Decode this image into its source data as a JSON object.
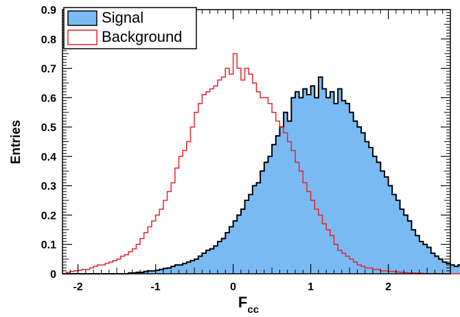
{
  "chart_data": {
    "type": "histogram",
    "xlabel": "F",
    "xlabel_sub": "cc",
    "ylabel": "Entries",
    "xlim": [
      -2.2,
      2.8
    ],
    "ylim": [
      0,
      0.9
    ],
    "x_ticks": [
      "-2",
      "-1",
      "0",
      "1",
      "2"
    ],
    "x_tick_values": [
      -2,
      -1,
      0,
      1,
      2
    ],
    "y_ticks": [
      "0",
      "0.1",
      "0.2",
      "0.3",
      "0.4",
      "0.5",
      "0.6",
      "0.7",
      "0.8",
      "0.9"
    ],
    "y_tick_values": [
      0,
      0.1,
      0.2,
      0.3,
      0.4,
      0.5,
      0.6,
      0.7,
      0.8,
      0.9
    ],
    "bin_start": -2.2,
    "bin_width": 0.05,
    "legend": {
      "position": "top-left"
    },
    "series": [
      {
        "name": "Signal",
        "style": "filled",
        "fill_color": "#79BAF3",
        "line_color": "#000000",
        "values": [
          0,
          0,
          0,
          0,
          0,
          0,
          0,
          0,
          0,
          0,
          0,
          0,
          0,
          0,
          0,
          0,
          0,
          0.003,
          0.003,
          0.005,
          0.005,
          0.008,
          0.01,
          0.01,
          0.012,
          0.015,
          0.018,
          0.02,
          0.025,
          0.03,
          0.03,
          0.035,
          0.04,
          0.045,
          0.05,
          0.06,
          0.07,
          0.08,
          0.085,
          0.095,
          0.11,
          0.12,
          0.14,
          0.16,
          0.18,
          0.2,
          0.22,
          0.25,
          0.27,
          0.3,
          0.31,
          0.35,
          0.38,
          0.4,
          0.44,
          0.47,
          0.5,
          0.55,
          0.52,
          0.6,
          0.62,
          0.6,
          0.63,
          0.61,
          0.64,
          0.6,
          0.67,
          0.63,
          0.6,
          0.62,
          0.58,
          0.63,
          0.59,
          0.58,
          0.55,
          0.52,
          0.5,
          0.48,
          0.45,
          0.43,
          0.4,
          0.38,
          0.35,
          0.33,
          0.3,
          0.27,
          0.25,
          0.22,
          0.2,
          0.18,
          0.15,
          0.13,
          0.11,
          0.1,
          0.09,
          0.07,
          0.06,
          0.05,
          0.04,
          0.035,
          0.03,
          0.025,
          0.03,
          0.02,
          0.02,
          0.015,
          0.01,
          0.01,
          0.008,
          0.006,
          0.005,
          0.004,
          0.003,
          0.002,
          0.002,
          0.001,
          0,
          0,
          0,
          0
        ]
      },
      {
        "name": "Background",
        "style": "outline",
        "line_color": "#E8202A",
        "values": [
          0,
          0.005,
          0.008,
          0.01,
          0.012,
          0.015,
          0.015,
          0.02,
          0.025,
          0.03,
          0.03,
          0.035,
          0.04,
          0.045,
          0.05,
          0.06,
          0.065,
          0.075,
          0.085,
          0.1,
          0.12,
          0.14,
          0.16,
          0.18,
          0.2,
          0.22,
          0.25,
          0.28,
          0.31,
          0.36,
          0.4,
          0.42,
          0.45,
          0.5,
          0.55,
          0.58,
          0.61,
          0.62,
          0.63,
          0.64,
          0.66,
          0.67,
          0.7,
          0.68,
          0.75,
          0.7,
          0.66,
          0.7,
          0.68,
          0.65,
          0.62,
          0.6,
          0.6,
          0.58,
          0.55,
          0.52,
          0.5,
          0.48,
          0.45,
          0.42,
          0.38,
          0.35,
          0.31,
          0.28,
          0.25,
          0.22,
          0.2,
          0.17,
          0.15,
          0.13,
          0.1,
          0.08,
          0.07,
          0.06,
          0.05,
          0.04,
          0.03,
          0.025,
          0.02,
          0.02,
          0.015,
          0.015,
          0.01,
          0.01,
          0.008,
          0.008,
          0.006,
          0.005,
          0.004,
          0.003,
          0.003,
          0.002,
          0.002,
          0.001,
          0.001,
          0.001,
          0.001,
          0,
          0,
          0,
          0,
          0,
          0,
          0,
          0,
          0,
          0,
          0,
          0,
          0,
          0,
          0,
          0,
          0,
          0,
          0,
          0,
          0,
          0,
          0
        ]
      }
    ]
  }
}
